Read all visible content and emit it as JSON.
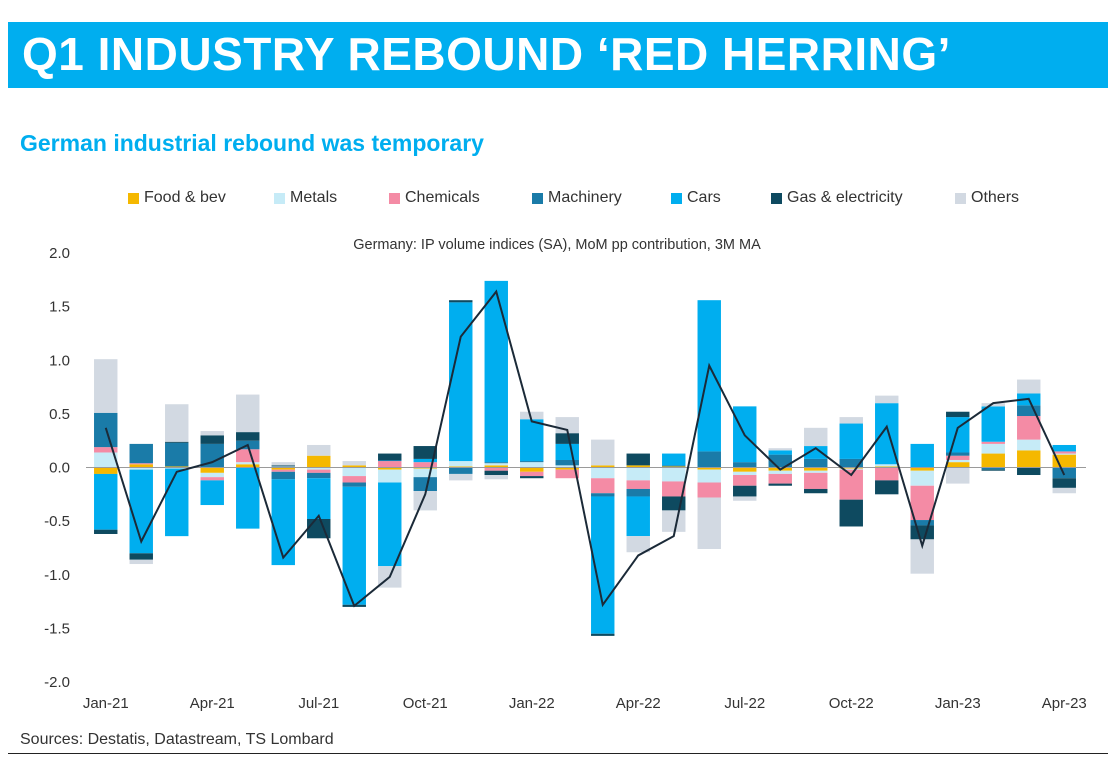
{
  "header": {
    "title": "Q1 INDUSTRY REBOUND ‘RED HERRING’"
  },
  "subtitle": "German industrial rebound was temporary",
  "source": "Sources: Destatis, Datastream, TS Lombard",
  "chart_data": {
    "type": "bar",
    "stacked": true,
    "title": "Germany: IP volume indices (SA), MoM pp contribution, 3M MA",
    "xlabel": "",
    "ylabel": "",
    "ylim": [
      -2.0,
      2.0
    ],
    "yticks": [
      2.0,
      1.5,
      1.0,
      0.5,
      0.0,
      -0.5,
      -1.0,
      -1.5,
      -2.0
    ],
    "ytick_labels": [
      "2.0",
      "1.5",
      "1.0",
      "0.5",
      "0.0",
      "-0.5",
      "-1.0",
      "-1.5",
      "-2.0"
    ],
    "grid": false,
    "legend_position": "top",
    "categories": [
      "Jan-21",
      "Feb-21",
      "Mar-21",
      "Apr-21",
      "May-21",
      "Jun-21",
      "Jul-21",
      "Aug-21",
      "Sep-21",
      "Oct-21",
      "Nov-21",
      "Dec-21",
      "Jan-22",
      "Feb-22",
      "Mar-22",
      "Apr-22",
      "May-22",
      "Jun-22",
      "Jul-22",
      "Aug-22",
      "Sep-22",
      "Oct-22",
      "Nov-22",
      "Dec-22",
      "Jan-23",
      "Feb-23",
      "Mar-23",
      "Apr-23"
    ],
    "xtick_labels": [
      {
        "index": 0,
        "label": "Jan-21"
      },
      {
        "index": 3,
        "label": "Apr-21"
      },
      {
        "index": 6,
        "label": "Jul-21"
      },
      {
        "index": 9,
        "label": "Oct-21"
      },
      {
        "index": 12,
        "label": "Jan-22"
      },
      {
        "index": 15,
        "label": "Apr-22"
      },
      {
        "index": 18,
        "label": "Jul-22"
      },
      {
        "index": 21,
        "label": "Oct-22"
      },
      {
        "index": 24,
        "label": "Jan-23"
      },
      {
        "index": 27,
        "label": "Apr-23"
      }
    ],
    "series": [
      {
        "name": "Food & bev",
        "color": "#F5B800",
        "values": [
          -0.06,
          0.03,
          0.01,
          -0.05,
          0.03,
          -0.02,
          0.11,
          0.02,
          -0.02,
          -0.01,
          0.01,
          0.02,
          -0.04,
          -0.02,
          0.02,
          0.02,
          0.01,
          -0.02,
          -0.04,
          -0.03,
          -0.03,
          -0.01,
          0.01,
          -0.03,
          0.05,
          0.13,
          0.16,
          0.12
        ]
      },
      {
        "name": "Metals",
        "color": "#C6EBF7",
        "values": [
          0.14,
          -0.02,
          -0.01,
          -0.04,
          0.02,
          0.01,
          -0.02,
          -0.08,
          -0.12,
          -0.08,
          0.05,
          0.02,
          0.05,
          0.02,
          -0.1,
          -0.12,
          -0.13,
          -0.12,
          -0.03,
          -0.03,
          -0.02,
          -0.01,
          0.02,
          -0.14,
          0.02,
          0.09,
          0.1,
          0.01
        ]
      },
      {
        "name": "Chemicals",
        "color": "#F48BA5",
        "values": [
          0.05,
          0.01,
          0.0,
          -0.03,
          0.12,
          -0.02,
          -0.03,
          -0.06,
          0.06,
          0.05,
          0.0,
          -0.03,
          -0.04,
          -0.08,
          -0.14,
          -0.08,
          -0.14,
          -0.14,
          -0.1,
          -0.09,
          -0.15,
          -0.28,
          -0.12,
          -0.32,
          0.04,
          0.02,
          0.22,
          0.02
        ]
      },
      {
        "name": "Machinery",
        "color": "#1A7BA8",
        "values": [
          0.32,
          0.18,
          0.22,
          0.22,
          0.08,
          -0.07,
          -0.05,
          -0.04,
          0.01,
          -0.13,
          -0.06,
          0.01,
          0.01,
          0.05,
          -0.03,
          -0.07,
          0.01,
          0.15,
          0.05,
          0.12,
          0.08,
          0.08,
          0.0,
          -0.05,
          0.03,
          -0.02,
          0.1,
          -0.1
        ]
      },
      {
        "name": "Cars",
        "color": "#00AEEF",
        "values": [
          -0.52,
          -0.78,
          -0.63,
          -0.23,
          -0.57,
          -0.8,
          -0.38,
          -1.1,
          -0.78,
          0.03,
          1.48,
          1.69,
          0.39,
          0.15,
          -1.28,
          -0.37,
          0.11,
          1.41,
          0.52,
          0.04,
          0.12,
          0.33,
          0.57,
          0.22,
          0.33,
          0.33,
          0.11,
          0.06
        ]
      },
      {
        "name": "Gas & electricity",
        "color": "#0E4A60",
        "values": [
          -0.04,
          -0.06,
          0.01,
          0.08,
          0.08,
          0.01,
          -0.18,
          -0.02,
          0.06,
          0.12,
          0.02,
          -0.04,
          -0.02,
          0.1,
          -0.02,
          0.11,
          -0.13,
          0.0,
          -0.1,
          -0.02,
          -0.04,
          -0.25,
          -0.13,
          -0.13,
          0.05,
          -0.01,
          -0.07,
          -0.09
        ]
      },
      {
        "name": "Others",
        "color": "#D2D9E2",
        "values": [
          0.5,
          -0.04,
          0.35,
          0.04,
          0.35,
          0.03,
          0.1,
          0.04,
          -0.2,
          -0.18,
          -0.06,
          -0.04,
          0.07,
          0.15,
          0.24,
          -0.15,
          -0.2,
          -0.48,
          -0.04,
          0.02,
          0.17,
          0.06,
          0.07,
          -0.32,
          -0.15,
          0.03,
          0.13,
          -0.05
        ]
      }
    ],
    "line": {
      "name": "",
      "color": "#1B2A38",
      "values": [
        0.37,
        -0.69,
        -0.04,
        0.05,
        0.21,
        -0.84,
        -0.45,
        -1.29,
        -1.02,
        -0.25,
        1.22,
        1.64,
        0.43,
        0.35,
        -1.28,
        -0.82,
        -0.64,
        0.95,
        0.3,
        -0.02,
        0.18,
        -0.07,
        0.38,
        -0.73,
        0.37,
        0.6,
        0.64,
        -0.07
      ]
    }
  }
}
